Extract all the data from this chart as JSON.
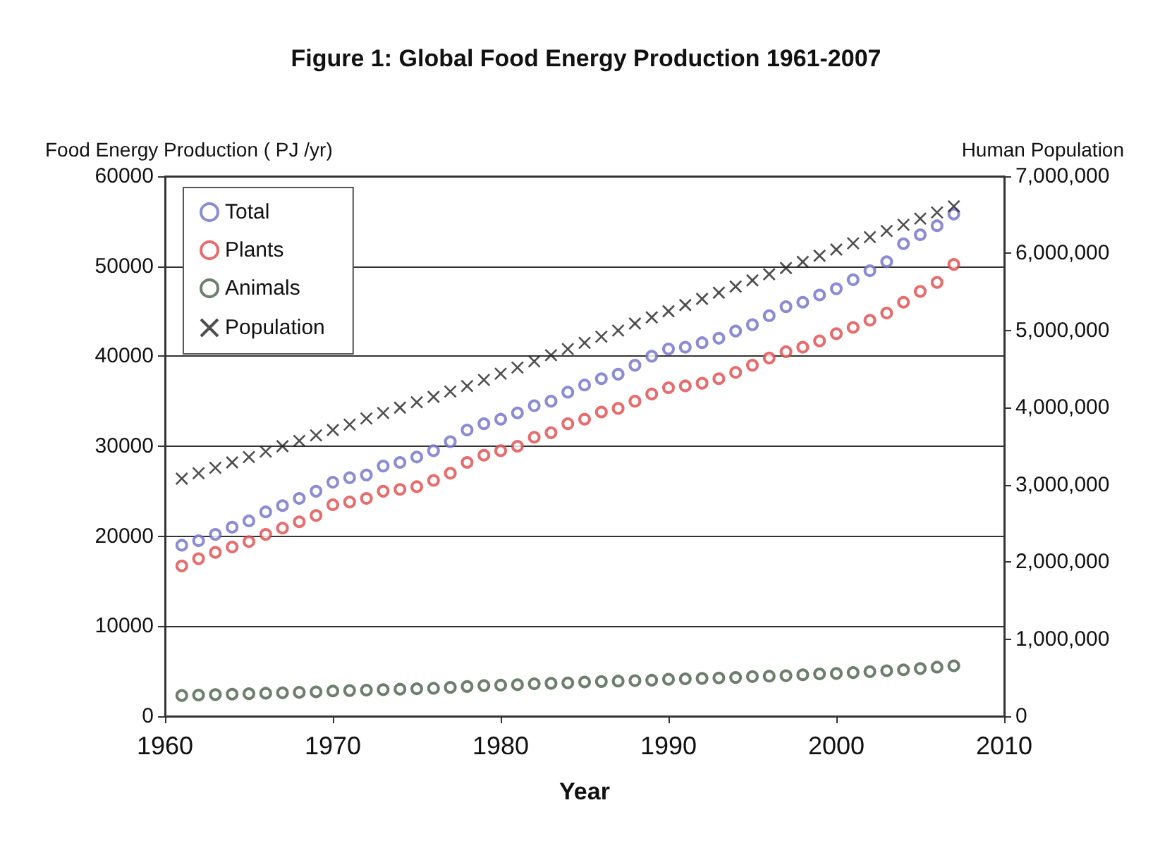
{
  "chart_data": {
    "type": "scatter",
    "title": "Figure 1: Global Food Energy Production 1961-2007",
    "xlabel": "Year",
    "ylabel": "Food Energy Production ( PJ /yr)",
    "y2label": "Human Population",
    "x": [
      1961,
      1962,
      1963,
      1964,
      1965,
      1966,
      1967,
      1968,
      1969,
      1970,
      1971,
      1972,
      1973,
      1974,
      1975,
      1976,
      1977,
      1978,
      1979,
      1980,
      1981,
      1982,
      1983,
      1984,
      1985,
      1986,
      1987,
      1988,
      1989,
      1990,
      1991,
      1992,
      1993,
      1994,
      1995,
      1996,
      1997,
      1998,
      1999,
      2000,
      2001,
      2002,
      2003,
      2004,
      2005,
      2006,
      2007
    ],
    "series": [
      {
        "name": "Total",
        "color": "#6f6fc8",
        "marker": "circle",
        "values": [
          19000,
          19500,
          20200,
          21000,
          21700,
          22700,
          23400,
          24200,
          25000,
          26000,
          26500,
          26800,
          27800,
          28200,
          28800,
          29500,
          30500,
          31800,
          32500,
          33000,
          33700,
          34500,
          35000,
          36000,
          36800,
          37500,
          38000,
          39000,
          40000,
          40800,
          41000,
          41500,
          42000,
          42800,
          43500,
          44500,
          45500,
          46000,
          46800,
          47500,
          48500,
          49500,
          50500,
          52500,
          53500,
          54500,
          55800
        ]
      },
      {
        "name": "Plants",
        "color": "#e04848",
        "marker": "circle",
        "values": [
          16700,
          17500,
          18200,
          18800,
          19400,
          20200,
          20900,
          21600,
          22300,
          23500,
          23800,
          24200,
          25000,
          25200,
          25500,
          26200,
          27000,
          28200,
          29000,
          29500,
          30000,
          31000,
          31500,
          32500,
          33000,
          33800,
          34200,
          35000,
          35800,
          36500,
          36700,
          37000,
          37500,
          38200,
          39000,
          39800,
          40500,
          41000,
          41700,
          42500,
          43200,
          44000,
          44800,
          46000,
          47200,
          48200,
          50200
        ]
      },
      {
        "name": "Animals",
        "color": "#4a5e4a",
        "marker": "circle",
        "values": [
          2300,
          2350,
          2400,
          2450,
          2500,
          2550,
          2600,
          2650,
          2700,
          2800,
          2850,
          2900,
          2950,
          3000,
          3050,
          3100,
          3200,
          3300,
          3400,
          3450,
          3500,
          3600,
          3650,
          3700,
          3800,
          3850,
          3900,
          3950,
          4000,
          4100,
          4150,
          4200,
          4250,
          4300,
          4400,
          4450,
          4500,
          4600,
          4700,
          4750,
          4850,
          4950,
          5050,
          5150,
          5300,
          5450,
          5600
        ]
      },
      {
        "name": "Population",
        "color": "#222222",
        "marker": "cross",
        "axis": "y2",
        "values": [
          3080000,
          3150000,
          3220000,
          3290000,
          3360000,
          3430000,
          3500000,
          3570000,
          3640000,
          3710000,
          3780000,
          3860000,
          3930000,
          4000000,
          4070000,
          4140000,
          4210000,
          4280000,
          4360000,
          4440000,
          4520000,
          4600000,
          4680000,
          4760000,
          4840000,
          4920000,
          5000000,
          5090000,
          5170000,
          5250000,
          5330000,
          5410000,
          5490000,
          5570000,
          5650000,
          5730000,
          5810000,
          5890000,
          5970000,
          6050000,
          6130000,
          6210000,
          6290000,
          6370000,
          6450000,
          6530000,
          6610000
        ]
      }
    ],
    "xlim": [
      1960,
      2010
    ],
    "xticks": [
      1960,
      1970,
      1980,
      1990,
      2000,
      2010
    ],
    "ylim": [
      0,
      60000
    ],
    "yticks": [
      0,
      10000,
      20000,
      30000,
      40000,
      50000,
      60000
    ],
    "y2lim": [
      0,
      7000000
    ],
    "y2ticks": [
      {
        "value": 0,
        "label": "0"
      },
      {
        "value": 1000000,
        "label": "1,000,000"
      },
      {
        "value": 2000000,
        "label": "2,000,000"
      },
      {
        "value": 3000000,
        "label": "3,000,000"
      },
      {
        "value": 4000000,
        "label": "4,000,000"
      },
      {
        "value": 5000000,
        "label": "5,000,000"
      },
      {
        "value": 6000000,
        "label": "6,000,000"
      },
      {
        "value": 7000000,
        "label": "7,000,000"
      }
    ],
    "grid": "y",
    "legend": "top left"
  }
}
